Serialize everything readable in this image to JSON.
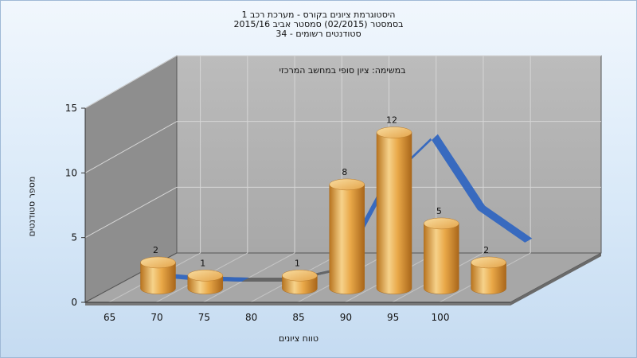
{
  "chart_data": {
    "type": "bar",
    "title_lines": [
      "היסטוגרמת ציונים בקורס - מערכת רכב 1",
      "בסמסטר  (02/2015)  סמסטר אביב 2015/16",
      "סטודנטים רשומים - 34"
    ],
    "subtitle": "במשימה: ציון סופי במחשב המרכזי",
    "xlabel": "טווח ציונים",
    "ylabel": "מספר סטודנטים",
    "x_ticks": [
      "65",
      "70",
      "75",
      "80",
      "85",
      "90",
      "95",
      "100"
    ],
    "y_ticks": [
      "0",
      "5",
      "10",
      "15"
    ],
    "ylim": [
      0,
      15
    ],
    "bars": [
      {
        "x": 67.5,
        "value": 2,
        "label": "2"
      },
      {
        "x": 72.5,
        "value": 1,
        "label": "1"
      },
      {
        "x": 82.5,
        "value": 1,
        "label": "1"
      },
      {
        "x": 87.5,
        "value": 8,
        "label": "8"
      },
      {
        "x": 92.5,
        "value": 12,
        "label": "12"
      },
      {
        "x": 97.5,
        "value": 5,
        "label": "5"
      },
      {
        "x": 102.5,
        "value": 2,
        "label": "2"
      }
    ],
    "curve": {
      "x": [
        65,
        70,
        75,
        80,
        85,
        90,
        95,
        100,
        105
      ],
      "y": [
        0.4,
        0.1,
        0.0,
        0.0,
        0.8,
        7.5,
        11.0,
        5.5,
        3.0
      ]
    },
    "colors": {
      "bar": "#e8a540",
      "curve": "#3166c0",
      "curve_shadow": "#666666",
      "wall": "#b4b4b4",
      "side_wall": "#8e8e8e",
      "floor": "#a7a7a7"
    },
    "grid": true
  }
}
